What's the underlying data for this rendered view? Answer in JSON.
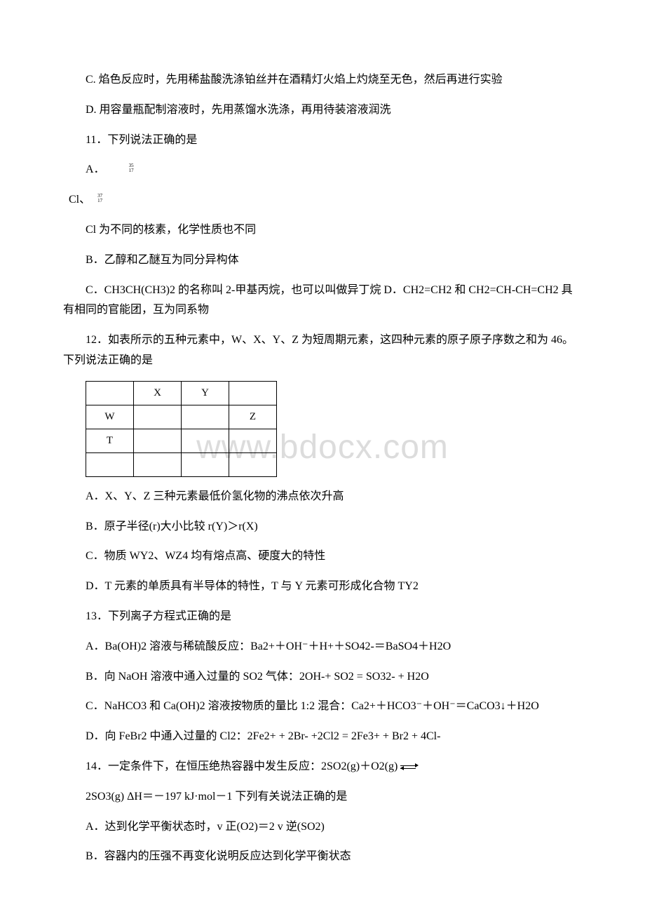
{
  "watermark": "www.bdocx.com",
  "p": {
    "q10c": "C. 焰色反应时，先用稀盐酸洗涤铂丝并在酒精灯火焰上灼烧至无色，然后再进行实验",
    "q10d": "D. 用容量瓶配制溶液时，先用蒸馏水洗涤，再用待装溶液润洗",
    "q11": "11．下列说法正确的是",
    "q11a_pre": "A．",
    "q11a_stack_top": "35",
    "q11a_stack_bot": "17",
    "q11a_mid1": " Cl、",
    "q11a_stack2_top": "37",
    "q11a_stack2_bot": "17",
    "q11a_line2": "Cl 为不同的核素，化学性质也不同",
    "q11b": "B．乙醇和乙醚互为同分异构体",
    "q11c": "C．CH3CH(CH3)2 的名称叫 2-甲基丙烷，也可以叫做异丁烷 D．CH2=CH2 和 CH2=CH-CH=CH2 具有相同的官能团，互为同系物",
    "q12": "12．如表所示的五种元素中，W、X、Y、Z 为短周期元素，这四种元素的原子原子序数之和为 46。下列说法正确的是",
    "q12a": "A．X、Y、Z 三种元素最低价氢化物的沸点依次升高",
    "q12b": "B．原子半径(r)大小比较 r(Y)＞r(X)",
    "q12c": "C．物质 WY2、WZ4 均有熔点高、硬度大的特性",
    "q12d": "D．T 元素的单质具有半导体的特性，T 与 Y 元素可形成化合物 TY2",
    "q13": "13．下列离子方程式正确的是",
    "q13a": "A．Ba(OH)2 溶液与稀硫酸反应：Ba2+＋OH⁻＋H+＋SO42-＝BaSO4＋H2O",
    "q13b": "B．向 NaOH 溶液中通入过量的 SO2 气体：2OH-+ SO2 = SO32- + H2O",
    "q13c": "C．NaHCO3 和 Ca(OH)2 溶液按物质的量比 1:2 混合：Ca2+＋HCO3⁻＋OH⁻＝CaCO3↓＋H2O",
    "q13d": "D．向 FeBr2 中通入过量的 Cl2：2Fe2+ + 2Br- +2Cl2 = 2Fe3+ + Br2 + 4Cl-",
    "q14a_pre": "14．一定条件下，在恒压绝热容器中发生反应：2SO2(g)＋O2(g) ",
    "q14_line2": "2SO3(g) ΔH＝－197 kJ·mol－1 下列有关说法正确的是",
    "q14optA": "A．达到化学平衡状态时，v 正(O2)＝2 v 逆(SO2)",
    "q14optB": "B．容器内的压强不再变化说明反应达到化学平衡状态"
  },
  "table": {
    "r1": [
      "",
      "X",
      "Y",
      ""
    ],
    "r2": [
      "W",
      "",
      "",
      "Z"
    ],
    "r3": [
      "T",
      "",
      "",
      ""
    ],
    "r4": [
      "",
      "",
      "",
      ""
    ]
  }
}
